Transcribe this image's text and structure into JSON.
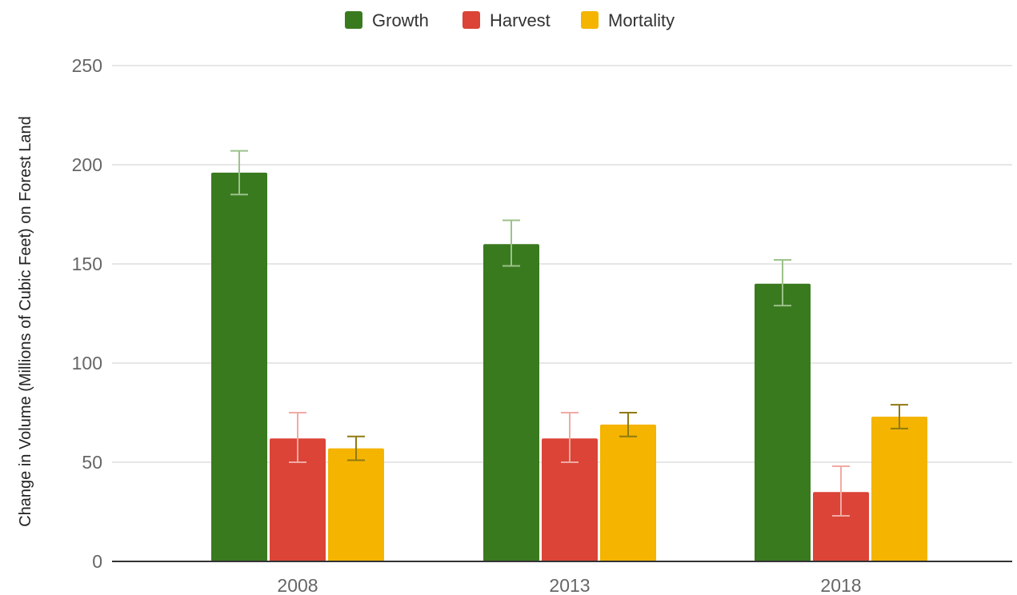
{
  "chart_data": {
    "type": "bar",
    "title": "",
    "xlabel": "",
    "ylabel": "Change in Volume (Millions of  Cubic Feet) on Forest Land",
    "categories": [
      "2008",
      "2013",
      "2018"
    ],
    "ylim": [
      0,
      250
    ],
    "yticks": [
      0,
      50,
      100,
      150,
      200,
      250
    ],
    "grid": true,
    "legend_position": "top-center",
    "series": [
      {
        "name": "Growth",
        "color": "#3a7a1f",
        "error_color": "#9bc28a",
        "values": [
          196,
          160,
          140
        ],
        "error_low": [
          185,
          149,
          129
        ],
        "error_high": [
          207,
          172,
          152
        ]
      },
      {
        "name": "Harvest",
        "color": "#db4437",
        "error_color": "#efaaa3",
        "values": [
          62,
          62,
          35
        ],
        "error_low": [
          50,
          50,
          23
        ],
        "error_high": [
          75,
          75,
          48
        ]
      },
      {
        "name": "Mortality",
        "color": "#f4b400",
        "error_color": "#8f7a12",
        "values": [
          57,
          69,
          73
        ],
        "error_low": [
          51,
          63,
          67
        ],
        "error_high": [
          63,
          75,
          79
        ]
      }
    ]
  }
}
